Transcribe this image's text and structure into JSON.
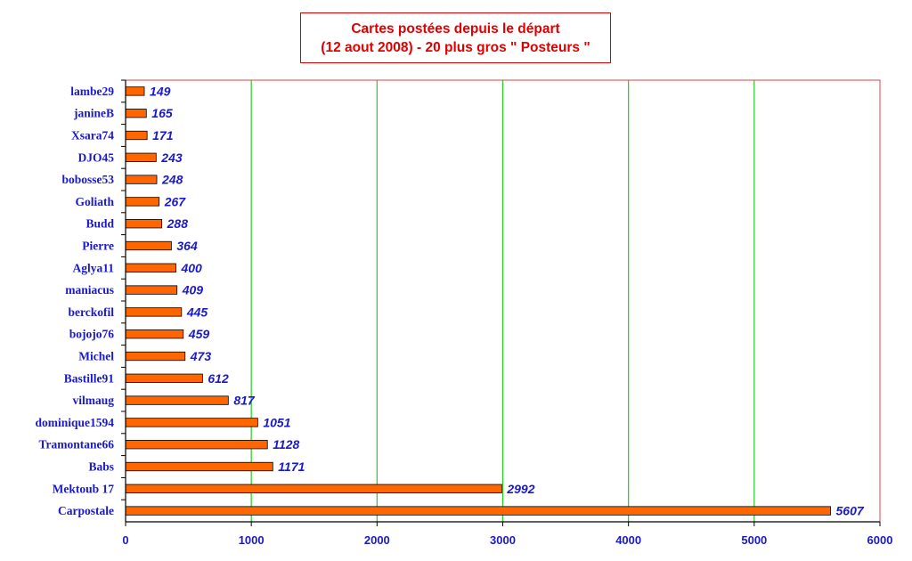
{
  "chart_data": {
    "type": "bar",
    "orientation": "horizontal",
    "title_lines": [
      "Cartes postées depuis le départ",
      "(12 aout 2008) - 20 plus gros \" Posteurs \""
    ],
    "categories": [
      "lambe29",
      "janineB",
      "Xsara74",
      "DJO45",
      "bobosse53",
      "Goliath",
      "Budd",
      "Pierre",
      "Aglya11",
      "maniacus",
      "berckofil",
      "bojojo76",
      "Michel",
      "Bastille91",
      "vilmaug",
      "dominique1594",
      "Tramontane66",
      "Babs",
      "Mektoub 17",
      "Carpostale"
    ],
    "values": [
      149,
      165,
      171,
      243,
      248,
      267,
      288,
      364,
      400,
      409,
      445,
      459,
      473,
      612,
      817,
      1051,
      1128,
      1171,
      2992,
      5607
    ],
    "xlim": [
      0,
      6000
    ],
    "xticks": [
      0,
      1000,
      2000,
      3000,
      4000,
      5000,
      6000
    ],
    "grid": "vertical",
    "colors": {
      "bar_fill": "#ff6600",
      "bar_stroke": "#000000",
      "gridline": "#22cc22",
      "plot_border": "#e04040",
      "label_text": "#1a1ac8",
      "title_text": "#e00000"
    }
  }
}
